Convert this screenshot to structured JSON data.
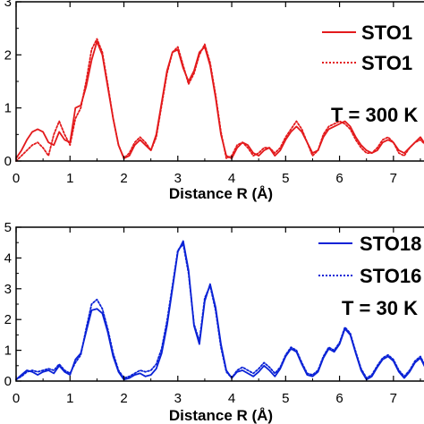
{
  "chart_data": [
    {
      "type": "line",
      "xlabel": "Distance R (Å)",
      "ylabel": "",
      "xlim": [
        0,
        7.6
      ],
      "ylim": [
        0,
        3
      ],
      "x_ticks": [
        0,
        1,
        2,
        3,
        4,
        5,
        6,
        7
      ],
      "y_ticks": [
        0,
        1,
        2,
        3
      ],
      "annotation": "T = 300 K",
      "legend_position": "top-right",
      "series": [
        {
          "name": "STO1",
          "color": "#e31a1c",
          "style": "solid",
          "x": [
            0,
            0.1,
            0.2,
            0.3,
            0.4,
            0.5,
            0.6,
            0.7,
            0.8,
            0.9,
            1.0,
            1.1,
            1.2,
            1.3,
            1.4,
            1.5,
            1.6,
            1.7,
            1.8,
            1.9,
            2.0,
            2.1,
            2.2,
            2.3,
            2.4,
            2.5,
            2.6,
            2.7,
            2.8,
            2.9,
            3.0,
            3.1,
            3.2,
            3.3,
            3.4,
            3.5,
            3.6,
            3.7,
            3.8,
            3.9,
            4.0,
            4.1,
            4.2,
            4.3,
            4.4,
            4.5,
            4.6,
            4.7,
            4.8,
            4.9,
            5.0,
            5.1,
            5.2,
            5.3,
            5.4,
            5.5,
            5.6,
            5.7,
            5.8,
            5.9,
            6.0,
            6.1,
            6.2,
            6.3,
            6.4,
            6.5,
            6.6,
            6.7,
            6.8,
            6.9,
            7.0,
            7.1,
            7.2,
            7.3,
            7.4,
            7.5,
            7.6
          ],
          "y": [
            0.05,
            0.2,
            0.4,
            0.55,
            0.6,
            0.55,
            0.35,
            0.3,
            0.55,
            0.4,
            0.35,
            1.0,
            1.05,
            1.4,
            1.9,
            2.25,
            2.0,
            1.4,
            0.8,
            0.3,
            0.05,
            0.1,
            0.3,
            0.4,
            0.3,
            0.2,
            0.5,
            1.1,
            1.7,
            2.05,
            2.1,
            1.75,
            1.5,
            1.7,
            2.05,
            2.15,
            1.8,
            1.2,
            0.5,
            0.1,
            0.05,
            0.25,
            0.35,
            0.3,
            0.15,
            0.1,
            0.2,
            0.25,
            0.1,
            0.2,
            0.4,
            0.55,
            0.65,
            0.55,
            0.35,
            0.15,
            0.2,
            0.45,
            0.6,
            0.65,
            0.7,
            0.75,
            0.65,
            0.45,
            0.3,
            0.2,
            0.15,
            0.2,
            0.35,
            0.4,
            0.35,
            0.2,
            0.15,
            0.25,
            0.35,
            0.45,
            0.3
          ]
        },
        {
          "name": "STO1",
          "color": "#e31a1c",
          "style": "dotted",
          "x": [
            0,
            0.1,
            0.2,
            0.3,
            0.4,
            0.5,
            0.6,
            0.7,
            0.8,
            0.9,
            1.0,
            1.1,
            1.2,
            1.3,
            1.4,
            1.5,
            1.6,
            1.7,
            1.8,
            1.9,
            2.0,
            2.1,
            2.2,
            2.3,
            2.4,
            2.5,
            2.6,
            2.7,
            2.8,
            2.9,
            3.0,
            3.1,
            3.2,
            3.3,
            3.4,
            3.5,
            3.6,
            3.7,
            3.8,
            3.9,
            4.0,
            4.1,
            4.2,
            4.3,
            4.4,
            4.5,
            4.6,
            4.7,
            4.8,
            4.9,
            5.0,
            5.1,
            5.2,
            5.3,
            5.4,
            5.5,
            5.6,
            5.7,
            5.8,
            5.9,
            6.0,
            6.1,
            6.2,
            6.3,
            6.4,
            6.5,
            6.6,
            6.7,
            6.8,
            6.9,
            7.0,
            7.1,
            7.2,
            7.3,
            7.4,
            7.5,
            7.6
          ],
          "y": [
            0.0,
            0.1,
            0.2,
            0.3,
            0.35,
            0.25,
            0.1,
            0.5,
            0.75,
            0.5,
            0.3,
            0.8,
            1.0,
            1.5,
            2.1,
            2.3,
            2.05,
            1.45,
            0.8,
            0.3,
            0.05,
            0.15,
            0.35,
            0.45,
            0.35,
            0.2,
            0.45,
            1.05,
            1.65,
            2.05,
            2.15,
            1.8,
            1.45,
            1.65,
            2.0,
            2.2,
            1.85,
            1.25,
            0.55,
            0.05,
            0.1,
            0.3,
            0.35,
            0.25,
            0.1,
            0.15,
            0.25,
            0.25,
            0.15,
            0.25,
            0.45,
            0.6,
            0.75,
            0.6,
            0.35,
            0.1,
            0.2,
            0.5,
            0.65,
            0.7,
            0.75,
            0.7,
            0.6,
            0.4,
            0.25,
            0.15,
            0.15,
            0.25,
            0.4,
            0.45,
            0.35,
            0.15,
            0.1,
            0.25,
            0.35,
            0.4,
            0.3
          ]
        }
      ]
    },
    {
      "type": "line",
      "xlabel": "Distance R (Å)",
      "ylabel": "",
      "xlim": [
        0,
        7.6
      ],
      "ylim": [
        0,
        5
      ],
      "x_ticks": [
        0,
        1,
        2,
        3,
        4,
        5,
        6,
        7
      ],
      "y_ticks": [
        0,
        1,
        2,
        3,
        4,
        5
      ],
      "annotation": "T = 30 K",
      "legend_position": "top-right",
      "series": [
        {
          "name": "STO18",
          "color": "#0a22d6",
          "style": "solid",
          "x": [
            0,
            0.1,
            0.2,
            0.3,
            0.4,
            0.5,
            0.6,
            0.7,
            0.8,
            0.9,
            1.0,
            1.1,
            1.2,
            1.3,
            1.4,
            1.5,
            1.6,
            1.7,
            1.8,
            1.9,
            2.0,
            2.1,
            2.2,
            2.3,
            2.4,
            2.5,
            2.6,
            2.7,
            2.8,
            2.9,
            3.0,
            3.1,
            3.2,
            3.3,
            3.4,
            3.5,
            3.6,
            3.7,
            3.8,
            3.9,
            4.0,
            4.1,
            4.2,
            4.3,
            4.4,
            4.5,
            4.6,
            4.7,
            4.8,
            4.9,
            5.0,
            5.1,
            5.2,
            5.3,
            5.4,
            5.5,
            5.6,
            5.7,
            5.8,
            5.9,
            6.0,
            6.1,
            6.2,
            6.3,
            6.4,
            6.5,
            6.6,
            6.7,
            6.8,
            6.9,
            7.0,
            7.1,
            7.2,
            7.3,
            7.4,
            7.5,
            7.6
          ],
          "y": [
            0.05,
            0.2,
            0.35,
            0.3,
            0.2,
            0.3,
            0.35,
            0.25,
            0.5,
            0.3,
            0.2,
            0.7,
            0.9,
            1.6,
            2.3,
            2.35,
            2.2,
            1.6,
            0.8,
            0.3,
            0.05,
            0.1,
            0.2,
            0.25,
            0.15,
            0.2,
            0.4,
            0.9,
            1.8,
            3.0,
            4.2,
            4.55,
            3.6,
            1.8,
            1.2,
            2.6,
            3.15,
            2.4,
            1.2,
            0.35,
            0.1,
            0.3,
            0.35,
            0.25,
            0.15,
            0.3,
            0.5,
            0.35,
            0.15,
            0.4,
            0.8,
            1.05,
            0.95,
            0.55,
            0.2,
            0.15,
            0.3,
            0.75,
            1.05,
            0.95,
            1.2,
            1.7,
            1.5,
            0.9,
            0.35,
            0.05,
            0.15,
            0.45,
            0.7,
            0.8,
            0.65,
            0.3,
            0.1,
            0.3,
            0.6,
            0.75,
            0.4
          ]
        },
        {
          "name": "STO16",
          "color": "#0a22d6",
          "style": "dotted",
          "x": [
            0,
            0.1,
            0.2,
            0.3,
            0.4,
            0.5,
            0.6,
            0.7,
            0.8,
            0.9,
            1.0,
            1.1,
            1.2,
            1.3,
            1.4,
            1.5,
            1.6,
            1.7,
            1.8,
            1.9,
            2.0,
            2.1,
            2.2,
            2.3,
            2.4,
            2.5,
            2.6,
            2.7,
            2.8,
            2.9,
            3.0,
            3.1,
            3.2,
            3.3,
            3.4,
            3.5,
            3.6,
            3.7,
            3.8,
            3.9,
            4.0,
            4.1,
            4.2,
            4.3,
            4.4,
            4.5,
            4.6,
            4.7,
            4.8,
            4.9,
            5.0,
            5.1,
            5.2,
            5.3,
            5.4,
            5.5,
            5.6,
            5.7,
            5.8,
            5.9,
            6.0,
            6.1,
            6.2,
            6.3,
            6.4,
            6.5,
            6.6,
            6.7,
            6.8,
            6.9,
            7.0,
            7.1,
            7.2,
            7.3,
            7.4,
            7.5,
            7.6
          ],
          "y": [
            0.05,
            0.15,
            0.3,
            0.35,
            0.3,
            0.35,
            0.4,
            0.35,
            0.55,
            0.35,
            0.25,
            0.6,
            0.85,
            1.7,
            2.5,
            2.65,
            2.35,
            1.7,
            0.9,
            0.35,
            0.1,
            0.15,
            0.25,
            0.35,
            0.3,
            0.35,
            0.55,
            1.05,
            1.95,
            3.1,
            4.25,
            4.45,
            3.5,
            1.85,
            1.3,
            2.7,
            3.1,
            2.3,
            1.1,
            0.3,
            0.1,
            0.35,
            0.45,
            0.35,
            0.25,
            0.4,
            0.6,
            0.45,
            0.25,
            0.45,
            0.85,
            1.1,
            1.0,
            0.6,
            0.25,
            0.2,
            0.35,
            0.8,
            1.1,
            1.0,
            1.25,
            1.75,
            1.55,
            0.95,
            0.4,
            0.1,
            0.2,
            0.5,
            0.75,
            0.85,
            0.7,
            0.35,
            0.15,
            0.35,
            0.65,
            0.8,
            0.45
          ]
        }
      ]
    }
  ]
}
